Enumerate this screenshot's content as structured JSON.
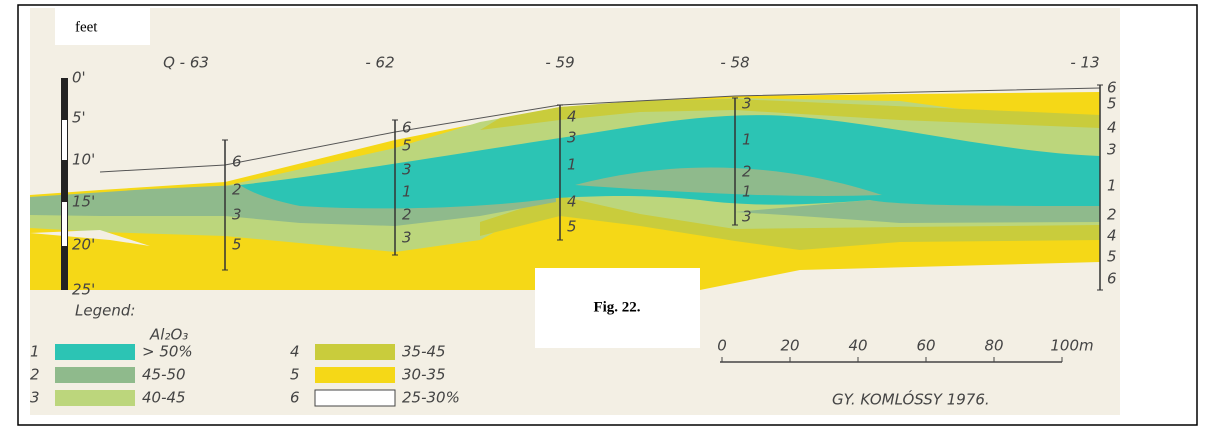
{
  "feet_label": "feet",
  "fig_label": "Fig. 22.",
  "depth_labels": [
    "0'",
    "5'",
    "10'",
    "15'",
    "20'",
    "25'"
  ],
  "boreholes": [
    {
      "label": "Q - 63",
      "layers": [
        "6",
        "2",
        "3",
        "5"
      ]
    },
    {
      "label": "- 62",
      "layers": [
        "6",
        "5",
        "3",
        "1",
        "2",
        "3"
      ]
    },
    {
      "label": "- 59",
      "layers": [
        "4",
        "3",
        "1",
        "4",
        "5"
      ]
    },
    {
      "label": "- 58",
      "layers": [
        "3",
        "1",
        "2",
        "1",
        "3"
      ]
    },
    {
      "label": "- 13",
      "layers": [
        "6",
        "5",
        "4",
        "3",
        "1",
        "2",
        "4",
        "5",
        "6"
      ]
    }
  ],
  "legend": {
    "title": "Legend:",
    "subtitle": "Al₂O₃",
    "items": [
      {
        "number": "1",
        "range": "> 50%"
      },
      {
        "number": "2",
        "range": "45-50"
      },
      {
        "number": "3",
        "range": "40-45"
      },
      {
        "number": "4",
        "range": "35-45"
      },
      {
        "number": "5",
        "range": "30-35"
      },
      {
        "number": "6",
        "range": "25-30%"
      }
    ]
  },
  "scale": {
    "labels": [
      "0",
      "20",
      "40",
      "60",
      "80",
      "100m"
    ]
  },
  "credit": "GY. KOMLÓSSY 1976."
}
